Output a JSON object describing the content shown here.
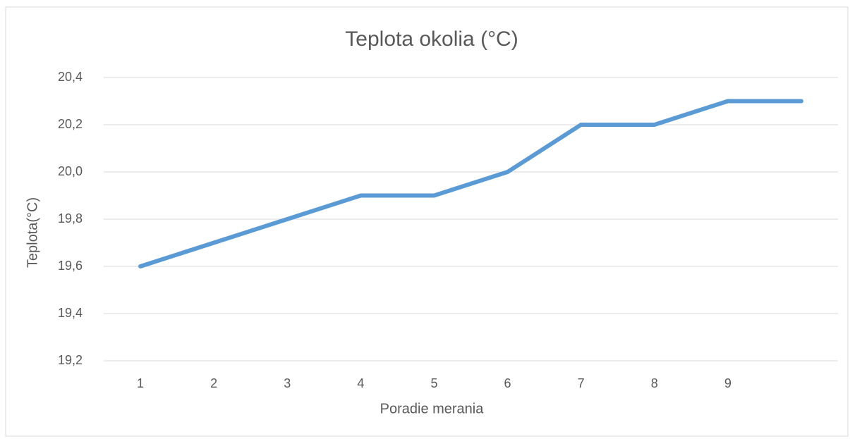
{
  "chart_data": {
    "type": "line",
    "title": "Teplota okolia (°C)",
    "x_label": "Poradie merania",
    "y_label": "Teplota(°C)",
    "categories": [
      "1",
      "2",
      "3",
      "4",
      "5",
      "6",
      "7",
      "8",
      "9",
      null
    ],
    "series": [
      {
        "name": "Teplota",
        "color": "#5b9bd5",
        "values": [
          19.6,
          19.7,
          19.8,
          19.9,
          19.9,
          20.0,
          20.2,
          20.2,
          20.3,
          20.3
        ]
      }
    ],
    "ylim": [
      19.2,
      20.4
    ],
    "yticks": [
      {
        "value": 19.2,
        "label": "19,2"
      },
      {
        "value": 19.4,
        "label": "19,4"
      },
      {
        "value": 19.6,
        "label": "19,6"
      },
      {
        "value": 19.8,
        "label": "19,8"
      },
      {
        "value": 20.0,
        "label": "20,0"
      },
      {
        "value": 20.2,
        "label": "20,2"
      },
      {
        "value": 20.4,
        "label": "20,4"
      }
    ],
    "grid": true
  }
}
